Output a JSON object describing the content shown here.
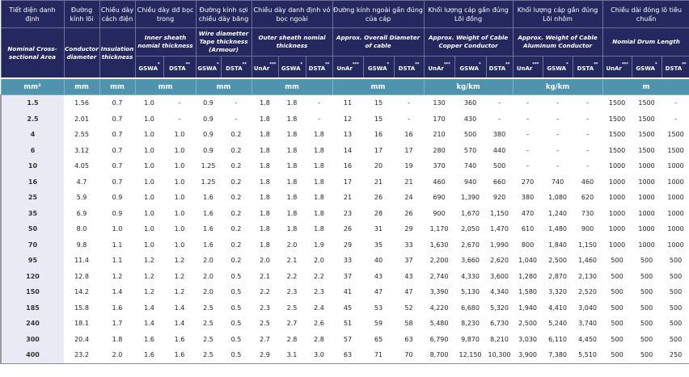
{
  "headers": {
    "groups_vn": [
      "Tiết diện danh định",
      "Đường kính lõi",
      "Chiều dày cách điện",
      "Chiều dày dđ bọc trong",
      "Đường kính sợi chiều dày băng",
      "Chiều dày danh định vỏ bọc ngoài",
      "Đường kính ngoài gần đúng của cáp",
      "Khối lượng cáp gần đúng Lõi đồng",
      "Khối lượng cáp gần đúng Lõi nhôm",
      "Chiều dài đóng lô tiêu chuẩn"
    ],
    "groups_en": [
      "Nominal Cross-sectional Area",
      "Conductor diameter",
      "Insulation thickness",
      "Inner sheath nomial thickness",
      "Wire diametter Tape thickness (Armour)",
      "Outer sheath nomial thickness",
      "Approx. Overall Diameter of cable",
      "Approx. Weight of Cable Copper Conductor",
      "Approx. Weight of Cable Aluminum Conductor",
      "Nomial Drum Length"
    ],
    "sub": {
      "gswa": "GSWA",
      "gswa_mark": "*",
      "dsta": "DSTA",
      "dsta_mark": "**",
      "unar": "UnAr",
      "unar_mark": "***"
    },
    "units": [
      "mm²",
      "mm",
      "mm",
      "mm",
      "mm",
      "mm",
      "mm",
      "kg/km",
      "kg/km",
      "m"
    ]
  },
  "rows": [
    {
      "area": "1.5",
      "cond": "1.56",
      "ins": "0.7",
      "inner": [
        "1.0",
        "-"
      ],
      "armour": [
        "0.9",
        "-"
      ],
      "outer": [
        "1.8",
        "1.8",
        "-"
      ],
      "dia": [
        "11",
        "15",
        "-"
      ],
      "cu": [
        "130",
        "360",
        "-"
      ],
      "al": [
        "-",
        "-",
        "-"
      ],
      "drum": [
        "1500",
        "1500",
        "-"
      ]
    },
    {
      "area": "2.5",
      "cond": "2.01",
      "ins": "0.7",
      "inner": [
        "1.0",
        "-"
      ],
      "armour": [
        "0.9",
        "-"
      ],
      "outer": [
        "1.8",
        "1.8",
        "-"
      ],
      "dia": [
        "12",
        "15",
        "-"
      ],
      "cu": [
        "170",
        "430",
        "-"
      ],
      "al": [
        "-",
        "-",
        "-"
      ],
      "drum": [
        "1500",
        "1500",
        "-"
      ]
    },
    {
      "area": "4",
      "cond": "2.55",
      "ins": "0.7",
      "inner": [
        "1.0",
        "1.0"
      ],
      "armour": [
        "0.9",
        "0.2"
      ],
      "outer": [
        "1.8",
        "1.8",
        "1.8"
      ],
      "dia": [
        "13",
        "16",
        "16"
      ],
      "cu": [
        "210",
        "500",
        "380"
      ],
      "al": [
        "-",
        "-",
        "-"
      ],
      "drum": [
        "1500",
        "1500",
        "1500"
      ]
    },
    {
      "area": "6",
      "cond": "3.12",
      "ins": "0.7",
      "inner": [
        "1.0",
        "1.0"
      ],
      "armour": [
        "0.9",
        "0.2"
      ],
      "outer": [
        "1.8",
        "1.8",
        "1.8"
      ],
      "dia": [
        "14",
        "17",
        "17"
      ],
      "cu": [
        "280",
        "570",
        "440"
      ],
      "al": [
        "-",
        "-",
        "-"
      ],
      "drum": [
        "1500",
        "1500",
        "1500"
      ]
    },
    {
      "area": "10",
      "cond": "4.05",
      "ins": "0.7",
      "inner": [
        "1.0",
        "1.0"
      ],
      "armour": [
        "1.25",
        "0.2"
      ],
      "outer": [
        "1.8",
        "1.8",
        "1.8"
      ],
      "dia": [
        "16",
        "20",
        "19"
      ],
      "cu": [
        "370",
        "740",
        "500"
      ],
      "al": [
        "-",
        "-",
        "-"
      ],
      "drum": [
        "1000",
        "1000",
        "1000"
      ]
    },
    {
      "area": "16",
      "cond": "4.7",
      "ins": "0.7",
      "inner": [
        "1.0",
        "1.0"
      ],
      "armour": [
        "1.25",
        "0.2"
      ],
      "outer": [
        "1.8",
        "1.8",
        "1.8"
      ],
      "dia": [
        "17",
        "21",
        "21"
      ],
      "cu": [
        "460",
        "940",
        "660"
      ],
      "al": [
        "270",
        "740",
        "460"
      ],
      "drum": [
        "1000",
        "1000",
        "1000"
      ]
    },
    {
      "area": "25",
      "cond": "5.9",
      "ins": "0.9",
      "inner": [
        "1.0",
        "1.0"
      ],
      "armour": [
        "1.6",
        "0.2"
      ],
      "outer": [
        "1.8",
        "1.8",
        "1.8"
      ],
      "dia": [
        "21",
        "26",
        "24"
      ],
      "cu": [
        "690",
        "1,390",
        "920"
      ],
      "al": [
        "380",
        "1,080",
        "620"
      ],
      "drum": [
        "1000",
        "1000",
        "1000"
      ]
    },
    {
      "area": "35",
      "cond": "6.9",
      "ins": "0.9",
      "inner": [
        "1.0",
        "1.0"
      ],
      "armour": [
        "1.6",
        "0.2"
      ],
      "outer": [
        "1.8",
        "1.8",
        "1.8"
      ],
      "dia": [
        "23",
        "28",
        "26"
      ],
      "cu": [
        "900",
        "1,670",
        "1,150"
      ],
      "al": [
        "470",
        "1,240",
        "730"
      ],
      "drum": [
        "1000",
        "1000",
        "1000"
      ]
    },
    {
      "area": "50",
      "cond": "8.0",
      "ins": "1.0",
      "inner": [
        "1.0",
        "1.0"
      ],
      "armour": [
        "1.6",
        "0.2"
      ],
      "outer": [
        "1.8",
        "1.8",
        "1.8"
      ],
      "dia": [
        "26",
        "31",
        "29"
      ],
      "cu": [
        "1,170",
        "2,050",
        "1,470"
      ],
      "al": [
        "610",
        "1,480",
        "900"
      ],
      "drum": [
        "1000",
        "1000",
        "1000"
      ]
    },
    {
      "area": "70",
      "cond": "9.8",
      "ins": "1.1",
      "inner": [
        "1.0",
        "1.0"
      ],
      "armour": [
        "1.6",
        "0.2"
      ],
      "outer": [
        "1.8",
        "2.0",
        "1.9"
      ],
      "dia": [
        "29",
        "35",
        "33"
      ],
      "cu": [
        "1,630",
        "2,670",
        "1,990"
      ],
      "al": [
        "800",
        "1,840",
        "1,150"
      ],
      "drum": [
        "1000",
        "1000",
        "1000"
      ]
    },
    {
      "area": "95",
      "cond": "11.4",
      "ins": "1.1",
      "inner": [
        "1.2",
        "1.2"
      ],
      "armour": [
        "2.0",
        "0.2"
      ],
      "outer": [
        "2.0",
        "2.1",
        "2.0"
      ],
      "dia": [
        "33",
        "40",
        "37"
      ],
      "cu": [
        "2,200",
        "3,660",
        "2,620"
      ],
      "al": [
        "1,040",
        "2,500",
        "1,460"
      ],
      "drum": [
        "500",
        "500",
        "500"
      ]
    },
    {
      "area": "120",
      "cond": "12.8",
      "ins": "1.2",
      "inner": [
        "1.2",
        "1.2"
      ],
      "armour": [
        "2.0",
        "0.5"
      ],
      "outer": [
        "2.1",
        "2.2",
        "2.2"
      ],
      "dia": [
        "37",
        "43",
        "43"
      ],
      "cu": [
        "2,740",
        "4,330",
        "3,600"
      ],
      "al": [
        "1,280",
        "2,870",
        "2,130"
      ],
      "drum": [
        "500",
        "500",
        "500"
      ]
    },
    {
      "area": "150",
      "cond": "14.2",
      "ins": "1.4",
      "inner": [
        "1.2",
        "1.2"
      ],
      "armour": [
        "2.0",
        "0.5"
      ],
      "outer": [
        "2.2",
        "2.3",
        "2.3"
      ],
      "dia": [
        "41",
        "47",
        "47"
      ],
      "cu": [
        "3,390",
        "5,130",
        "4,340"
      ],
      "al": [
        "1,580",
        "3,320",
        "2,520"
      ],
      "drum": [
        "500",
        "500",
        "500"
      ]
    },
    {
      "area": "185",
      "cond": "15.8",
      "ins": "1.6",
      "inner": [
        "1.4",
        "1.4"
      ],
      "armour": [
        "2.5",
        "0.5"
      ],
      "outer": [
        "2.3",
        "2.5",
        "2.4"
      ],
      "dia": [
        "45",
        "53",
        "52"
      ],
      "cu": [
        "4,220",
        "6,680",
        "5,320"
      ],
      "al": [
        "1,940",
        "4,410",
        "3,040"
      ],
      "drum": [
        "500",
        "500",
        "500"
      ]
    },
    {
      "area": "240",
      "cond": "18.1",
      "ins": "1.7",
      "inner": [
        "1.4",
        "1.4"
      ],
      "armour": [
        "2.5",
        "0.5"
      ],
      "outer": [
        "2.5",
        "2.7",
        "2.6"
      ],
      "dia": [
        "51",
        "59",
        "58"
      ],
      "cu": [
        "5,480",
        "8,230",
        "6,730"
      ],
      "al": [
        "2,500",
        "5,240",
        "3,740"
      ],
      "drum": [
        "500",
        "500",
        "500"
      ]
    },
    {
      "area": "300",
      "cond": "20.4",
      "ins": "1.8",
      "inner": [
        "1.6",
        "1.6"
      ],
      "armour": [
        "2.5",
        "0.5"
      ],
      "outer": [
        "2.7",
        "2.8",
        "2.8"
      ],
      "dia": [
        "57",
        "65",
        "63"
      ],
      "cu": [
        "6,790",
        "9,870",
        "8,210"
      ],
      "al": [
        "3,030",
        "6,110",
        "4,450"
      ],
      "drum": [
        "500",
        "500",
        "500"
      ]
    },
    {
      "area": "400",
      "cond": "23.2",
      "ins": "2.0",
      "inner": [
        "1.6",
        "1.6"
      ],
      "armour": [
        "2.5",
        "0.5"
      ],
      "outer": [
        "2.9",
        "3.1",
        "3.0"
      ],
      "dia": [
        "63",
        "71",
        "70"
      ],
      "cu": [
        "8,700",
        "12,150",
        "10,300"
      ],
      "al": [
        "3,900",
        "7,380",
        "5,510"
      ],
      "drum": [
        "500",
        "500",
        "250"
      ]
    }
  ]
}
